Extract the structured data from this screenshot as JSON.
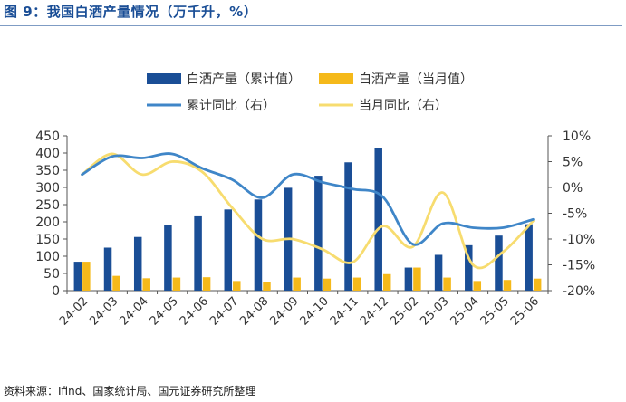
{
  "figure": {
    "title": "图 9：我国白酒产量情况（万千升，%）",
    "source": "资料来源：Ifind、国家统计局、国元证券研究所整理"
  },
  "chart_data": {
    "type": "bar",
    "categories": [
      "24-02",
      "24-03",
      "24-04",
      "24-05",
      "24-06",
      "24-07",
      "24-08",
      "24-09",
      "24-10",
      "24-11",
      "24-12",
      "25-02",
      "25-03",
      "25-04",
      "25-05",
      "25-06"
    ],
    "series": [
      {
        "name": "白酒产量（累计值）",
        "type": "bar",
        "axis": "left",
        "color": "#1a4e96",
        "values": [
          84,
          125,
          156,
          191,
          216,
          236,
          265,
          299,
          334,
          373,
          415,
          67,
          104,
          132,
          160,
          193
        ]
      },
      {
        "name": "白酒产量（当月值）",
        "type": "bar",
        "axis": "left",
        "color": "#f5b91a",
        "values": [
          84,
          43,
          36,
          38,
          39,
          28,
          26,
          38,
          35,
          38,
          48,
          67,
          38,
          28,
          31,
          35
        ]
      },
      {
        "name": "累计同比（右）",
        "type": "line",
        "axis": "right",
        "color": "#3f86c8",
        "values": [
          2.5,
          6.0,
          5.7,
          6.5,
          3.7,
          1.5,
          -2.0,
          2.5,
          1.0,
          -0.3,
          -1.8,
          -11.0,
          -7.0,
          -7.8,
          -7.8,
          -6.2
        ]
      },
      {
        "name": "当月同比（右）",
        "type": "line",
        "axis": "right",
        "color": "#f7dc6f",
        "values": [
          2.5,
          6.5,
          2.5,
          5.0,
          3.0,
          -4.0,
          -10.0,
          -10.0,
          -12.0,
          -14.5,
          -7.5,
          -11.5,
          -1.0,
          -15.0,
          -12.5,
          -6.5
        ]
      }
    ],
    "y_left": {
      "min": 0,
      "max": 450,
      "ticks": [
        0,
        50,
        100,
        150,
        200,
        250,
        300,
        350,
        400,
        450
      ]
    },
    "y_right": {
      "min": -20,
      "max": 10,
      "ticks": [
        -20,
        -15,
        -10,
        -5,
        0,
        5,
        10
      ],
      "tick_labels": [
        "-20%",
        "-15%",
        "-10%",
        "-5%",
        "0%",
        "5%",
        "10%"
      ]
    },
    "grid": false,
    "legend_position": "top"
  }
}
